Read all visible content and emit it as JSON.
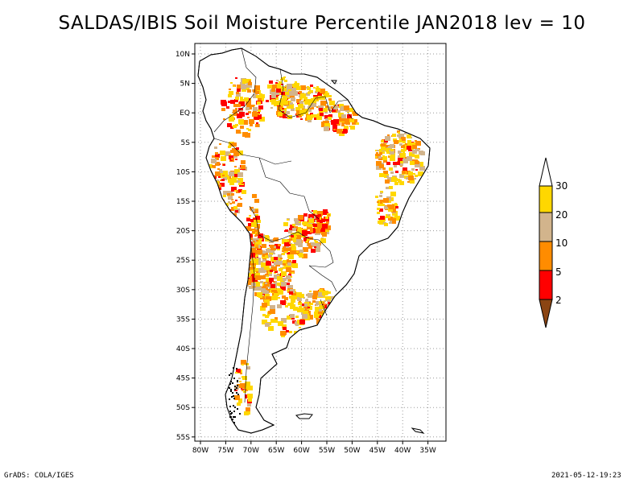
{
  "title": "SALDAS/IBIS Soil Moisture Percentile JAN2018 lev = 10",
  "footer": {
    "left": "GrADS: COLA/IGES",
    "right": "2021-05-12-19:23"
  },
  "map": {
    "lon_labels": [
      "80W",
      "75W",
      "70W",
      "65W",
      "60W",
      "55W",
      "50W",
      "45W",
      "40W",
      "35W"
    ],
    "lat_labels": [
      "10N",
      "5N",
      "EQ",
      "5S",
      "10S",
      "15S",
      "20S",
      "25S",
      "30S",
      "35S",
      "40S",
      "45S",
      "50S",
      "55S"
    ],
    "lon_range": [
      -81,
      -32
    ],
    "lat_range": [
      12,
      -56
    ],
    "gridlines": true
  },
  "colorbar": {
    "labels": [
      "30",
      "20",
      "10",
      "5",
      "2"
    ],
    "colors": {
      "above_30": "#ffffff",
      "20_30": "#ffd700",
      "10_20": "#d2b48c",
      "5_10": "#ff8c00",
      "2_5": "#ff0000",
      "below_2": "#8b4513"
    }
  }
}
